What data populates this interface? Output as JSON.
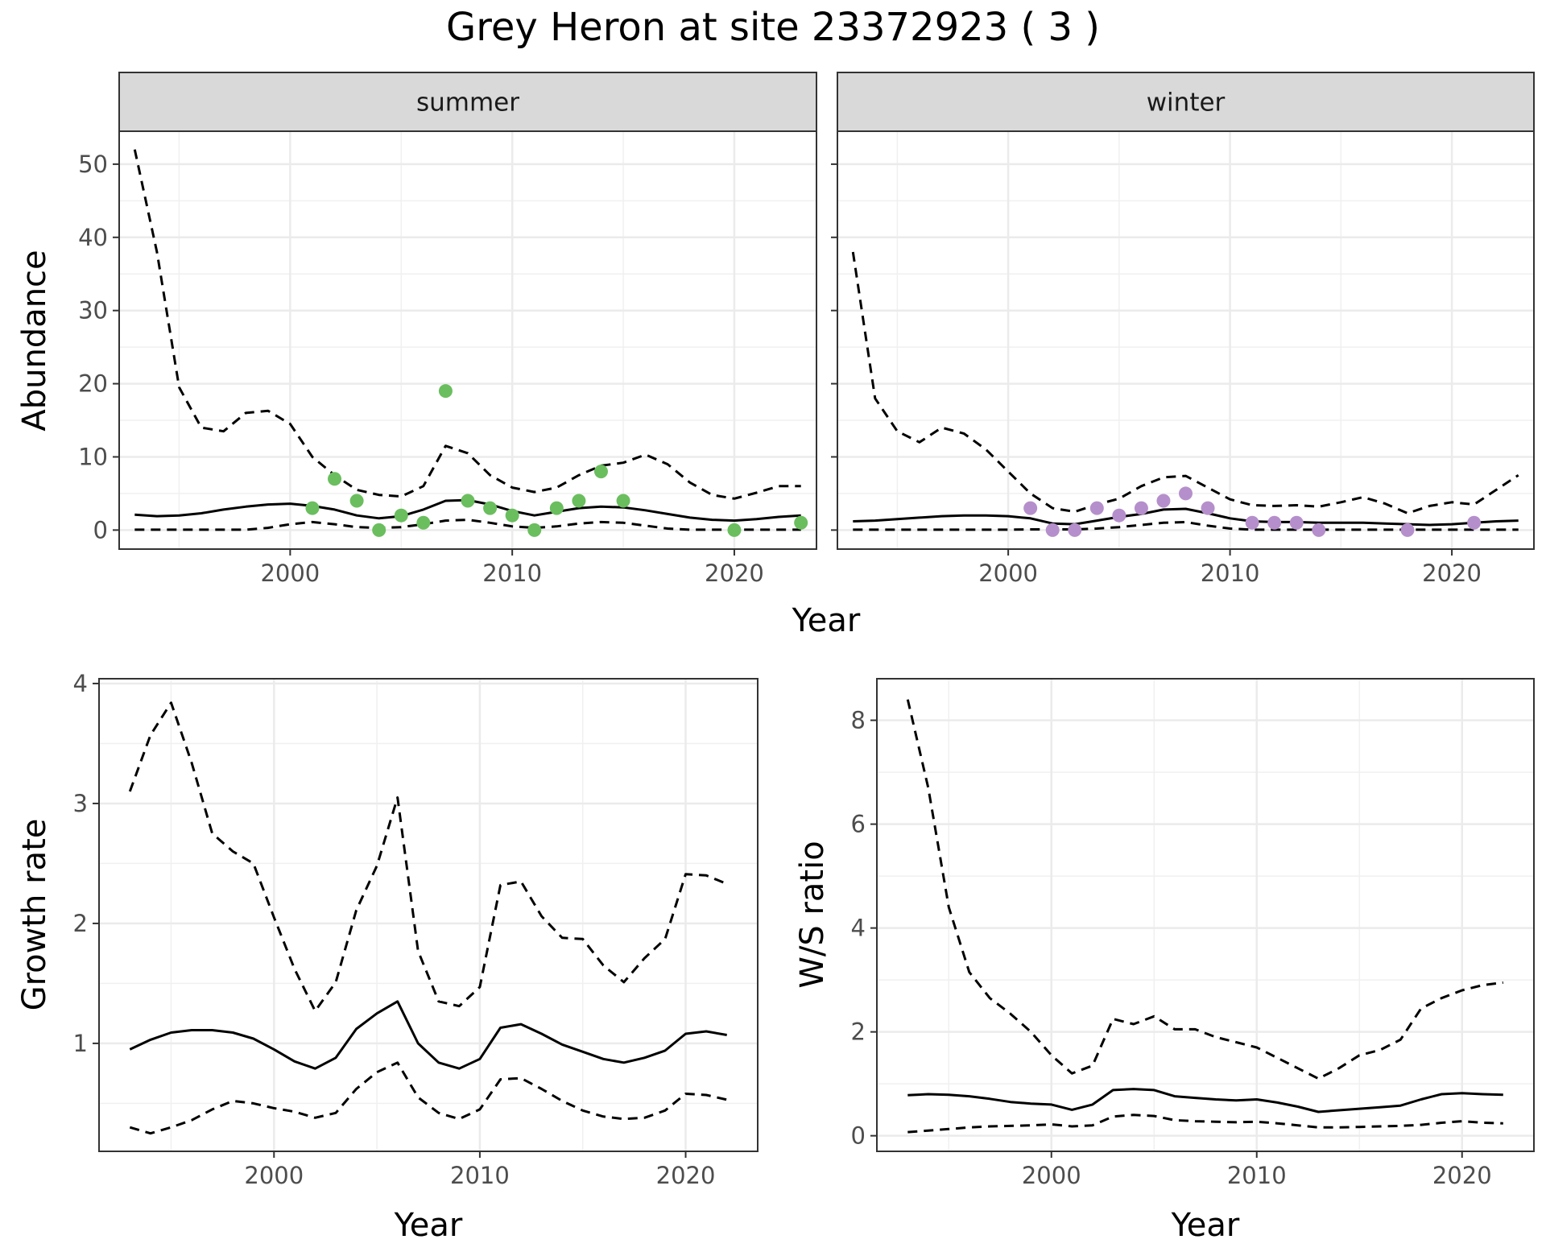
{
  "title": "Grey Heron at site 23372923 ( 3 )",
  "chart_data": [
    {
      "type": "line",
      "panel": "summer",
      "strip_label": "summer",
      "xlabel": "Year",
      "ylabel": "Abundance",
      "xlim": [
        1992.3,
        2023.7
      ],
      "ylim": [
        -2.6,
        54.5
      ],
      "xticks": [
        2000,
        2010,
        2020
      ],
      "yticks": [
        0,
        10,
        20,
        30,
        40,
        50
      ],
      "grid": true,
      "x": [
        1993,
        1994,
        1995,
        1996,
        1997,
        1998,
        1999,
        2000,
        2001,
        2002,
        2003,
        2004,
        2005,
        2006,
        2007,
        2008,
        2009,
        2010,
        2011,
        2012,
        2013,
        2014,
        2015,
        2016,
        2017,
        2018,
        2019,
        2020,
        2021,
        2022,
        2023
      ],
      "series": [
        {
          "role": "estimate",
          "style": "solid",
          "values": [
            2.1,
            1.9,
            2.0,
            2.3,
            2.8,
            3.2,
            3.5,
            3.6,
            3.3,
            2.8,
            2.0,
            1.6,
            1.9,
            2.8,
            4.0,
            4.1,
            3.5,
            2.6,
            2.0,
            2.5,
            3.0,
            3.2,
            3.1,
            2.7,
            2.2,
            1.7,
            1.4,
            1.3,
            1.5,
            1.8,
            2.0
          ]
        },
        {
          "role": "upper",
          "style": "dashed",
          "values": [
            52.0,
            38.0,
            19.5,
            14.0,
            13.5,
            16.0,
            16.3,
            14.5,
            10.0,
            7.5,
            5.5,
            4.8,
            4.6,
            6.0,
            11.5,
            10.5,
            7.5,
            5.8,
            5.2,
            5.8,
            7.5,
            8.8,
            9.2,
            10.3,
            9.0,
            6.5,
            4.8,
            4.3,
            5.1,
            6.0,
            6.0
          ]
        },
        {
          "role": "lower",
          "style": "dashed",
          "values": [
            0.05,
            0.05,
            0.05,
            0.05,
            0.05,
            0.05,
            0.3,
            0.8,
            1.1,
            0.8,
            0.4,
            0.3,
            0.4,
            0.8,
            1.3,
            1.4,
            1.0,
            0.5,
            0.3,
            0.5,
            0.9,
            1.1,
            1.0,
            0.6,
            0.2,
            0.05,
            0.05,
            0.05,
            0.05,
            0.05,
            0.05
          ]
        }
      ],
      "points": {
        "color": "#6abe5e",
        "x": [
          2001,
          2002,
          2003,
          2004,
          2005,
          2006,
          2007,
          2008,
          2009,
          2010,
          2011,
          2012,
          2013,
          2014,
          2015,
          2020,
          2023
        ],
        "y": [
          3,
          7,
          4,
          0,
          2,
          1,
          19,
          4,
          3,
          2,
          0,
          3,
          4,
          8,
          4,
          0,
          1
        ]
      }
    },
    {
      "type": "line",
      "panel": "winter",
      "strip_label": "winter",
      "xlabel": "Year",
      "ylabel": "Abundance",
      "xlim": [
        1992.3,
        2023.7
      ],
      "ylim": [
        -2.6,
        54.5
      ],
      "xticks": [
        2000,
        2010,
        2020
      ],
      "yticks": [
        0,
        10,
        20,
        30,
        40,
        50
      ],
      "grid": true,
      "x": [
        1993,
        1994,
        1995,
        1996,
        1997,
        1998,
        1999,
        2000,
        2001,
        2002,
        2003,
        2004,
        2005,
        2006,
        2007,
        2008,
        2009,
        2010,
        2011,
        2012,
        2013,
        2014,
        2015,
        2016,
        2017,
        2018,
        2019,
        2020,
        2021,
        2022,
        2023
      ],
      "series": [
        {
          "role": "estimate",
          "style": "solid",
          "values": [
            1.2,
            1.3,
            1.5,
            1.7,
            1.9,
            2.0,
            2.0,
            1.9,
            1.6,
            0.9,
            0.8,
            1.3,
            1.8,
            2.2,
            2.8,
            2.9,
            2.3,
            1.6,
            1.2,
            1.1,
            1.1,
            1.0,
            1.0,
            1.0,
            0.9,
            0.8,
            0.7,
            0.8,
            1.0,
            1.2,
            1.3
          ]
        },
        {
          "role": "upper",
          "style": "dashed",
          "values": [
            38.0,
            18.0,
            13.5,
            12.0,
            14.0,
            13.2,
            11.0,
            8.0,
            5.0,
            3.0,
            2.5,
            3.5,
            4.3,
            6.0,
            7.2,
            7.4,
            5.8,
            4.2,
            3.4,
            3.3,
            3.4,
            3.2,
            3.8,
            4.5,
            3.6,
            2.3,
            3.3,
            3.8,
            3.5,
            5.5,
            7.5
          ]
        },
        {
          "role": "lower",
          "style": "dashed",
          "values": [
            0.05,
            0.05,
            0.05,
            0.05,
            0.05,
            0.05,
            0.05,
            0.05,
            0.1,
            0.1,
            0.1,
            0.2,
            0.4,
            0.7,
            1.0,
            1.1,
            0.6,
            0.2,
            0.05,
            0.05,
            0.05,
            0.05,
            0.05,
            0.05,
            0.05,
            0.05,
            0.05,
            0.05,
            0.05,
            0.05,
            0.05
          ]
        }
      ],
      "points": {
        "color": "#b58fcb",
        "x": [
          2001,
          2002,
          2003,
          2004,
          2005,
          2006,
          2007,
          2008,
          2009,
          2011,
          2012,
          2013,
          2014,
          2018,
          2021
        ],
        "y": [
          3,
          0,
          0,
          3,
          2,
          3,
          4,
          5,
          3,
          1,
          1,
          1,
          0,
          0,
          1
        ]
      }
    },
    {
      "type": "line",
      "panel": "growth",
      "xlabel": "Year",
      "ylabel": "Growth rate",
      "xlim": [
        1991.5,
        2023.5
      ],
      "ylim": [
        0.1,
        4.04
      ],
      "xticks": [
        2000,
        2010,
        2020
      ],
      "yticks": [
        1,
        2,
        3,
        4
      ],
      "minor_yticks": [
        0.5,
        1.5,
        2.5,
        3.5
      ],
      "grid": true,
      "x": [
        1993,
        1994,
        1995,
        1996,
        1997,
        1998,
        1999,
        2000,
        2001,
        2002,
        2003,
        2004,
        2005,
        2006,
        2007,
        2008,
        2009,
        2010,
        2011,
        2012,
        2013,
        2014,
        2015,
        2016,
        2017,
        2018,
        2019,
        2020,
        2021,
        2022
      ],
      "series": [
        {
          "role": "estimate",
          "style": "solid",
          "values": [
            0.95,
            1.03,
            1.09,
            1.11,
            1.11,
            1.09,
            1.04,
            0.95,
            0.85,
            0.79,
            0.88,
            1.12,
            1.25,
            1.35,
            1.0,
            0.84,
            0.79,
            0.87,
            1.13,
            1.16,
            1.08,
            0.99,
            0.93,
            0.87,
            0.84,
            0.88,
            0.94,
            1.08,
            1.1,
            1.07
          ]
        },
        {
          "role": "upper",
          "style": "dashed",
          "values": [
            3.1,
            3.57,
            3.84,
            3.34,
            2.75,
            2.6,
            2.5,
            2.05,
            1.62,
            1.27,
            1.51,
            2.11,
            2.48,
            3.05,
            1.77,
            1.35,
            1.31,
            1.47,
            2.32,
            2.35,
            2.06,
            1.88,
            1.87,
            1.65,
            1.51,
            1.71,
            1.87,
            2.41,
            2.4,
            2.33
          ]
        },
        {
          "role": "lower",
          "style": "dashed",
          "values": [
            0.3,
            0.25,
            0.3,
            0.36,
            0.45,
            0.52,
            0.5,
            0.46,
            0.43,
            0.38,
            0.42,
            0.62,
            0.76,
            0.84,
            0.55,
            0.42,
            0.37,
            0.45,
            0.7,
            0.71,
            0.62,
            0.52,
            0.44,
            0.39,
            0.37,
            0.38,
            0.44,
            0.58,
            0.57,
            0.53
          ]
        }
      ]
    },
    {
      "type": "line",
      "panel": "ws-ratio",
      "xlabel": "Year",
      "ylabel": "W/S ratio",
      "xlim": [
        1991.5,
        2023.5
      ],
      "ylim": [
        -0.3,
        8.8
      ],
      "xticks": [
        2000,
        2010,
        2020
      ],
      "yticks": [
        0,
        2,
        4,
        6,
        8
      ],
      "minor_yticks": [
        1,
        3,
        5,
        7
      ],
      "grid": true,
      "x": [
        1993,
        1994,
        1995,
        1996,
        1997,
        1998,
        1999,
        2000,
        2001,
        2002,
        2003,
        2004,
        2005,
        2006,
        2007,
        2008,
        2009,
        2010,
        2011,
        2012,
        2013,
        2014,
        2015,
        2016,
        2017,
        2018,
        2019,
        2020,
        2021,
        2022
      ],
      "series": [
        {
          "role": "estimate",
          "style": "solid",
          "values": [
            0.78,
            0.8,
            0.79,
            0.76,
            0.71,
            0.65,
            0.62,
            0.6,
            0.5,
            0.6,
            0.88,
            0.9,
            0.88,
            0.76,
            0.73,
            0.7,
            0.68,
            0.7,
            0.64,
            0.56,
            0.46,
            0.49,
            0.52,
            0.55,
            0.58,
            0.7,
            0.8,
            0.82,
            0.8,
            0.79
          ]
        },
        {
          "role": "upper",
          "style": "dashed",
          "values": [
            8.4,
            6.7,
            4.4,
            3.15,
            2.65,
            2.35,
            2.0,
            1.55,
            1.2,
            1.35,
            2.25,
            2.15,
            2.3,
            2.05,
            2.05,
            1.9,
            1.8,
            1.7,
            1.5,
            1.3,
            1.1,
            1.3,
            1.55,
            1.65,
            1.85,
            2.45,
            2.65,
            2.8,
            2.9,
            2.95
          ]
        },
        {
          "role": "lower",
          "style": "dashed",
          "values": [
            0.07,
            0.1,
            0.13,
            0.16,
            0.18,
            0.19,
            0.2,
            0.22,
            0.18,
            0.2,
            0.37,
            0.4,
            0.38,
            0.3,
            0.28,
            0.27,
            0.26,
            0.27,
            0.24,
            0.2,
            0.16,
            0.16,
            0.17,
            0.18,
            0.19,
            0.21,
            0.25,
            0.28,
            0.25,
            0.24
          ]
        }
      ]
    }
  ]
}
